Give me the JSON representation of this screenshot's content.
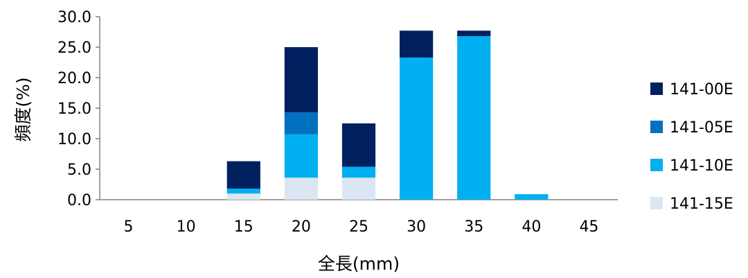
{
  "chart_data": {
    "type": "bar",
    "stacked": true,
    "categories": [
      "5",
      "10",
      "15",
      "20",
      "25",
      "30",
      "35",
      "40",
      "45"
    ],
    "series": [
      {
        "name": "141-15E",
        "color": "#dce6f2",
        "values": [
          0,
          0,
          1.0,
          3.6,
          3.6,
          0,
          0,
          0,
          0
        ]
      },
      {
        "name": "141-10E",
        "color": "#00b0f0",
        "values": [
          0,
          0,
          0.8,
          7.1,
          1.8,
          23.3,
          26.8,
          0.9,
          0
        ]
      },
      {
        "name": "141-05E",
        "color": "#0070c0",
        "values": [
          0,
          0,
          0,
          3.6,
          0,
          0,
          0,
          0,
          0
        ]
      },
      {
        "name": "141-00E",
        "color": "#002060",
        "values": [
          0,
          0,
          4.5,
          10.7,
          7.1,
          4.4,
          0.9,
          0,
          0
        ]
      }
    ],
    "legend_order": [
      "141-00E",
      "141-05E",
      "141-10E",
      "141-15E"
    ],
    "legend_position": "right",
    "xlabel": "全長(mm)",
    "ylabel": "頻度(%)",
    "ylim": [
      0,
      30
    ],
    "yticks": [
      "0.0",
      "5.0",
      "10.0",
      "15.0",
      "20.0",
      "25.0",
      "30.0"
    ],
    "grid": false
  }
}
